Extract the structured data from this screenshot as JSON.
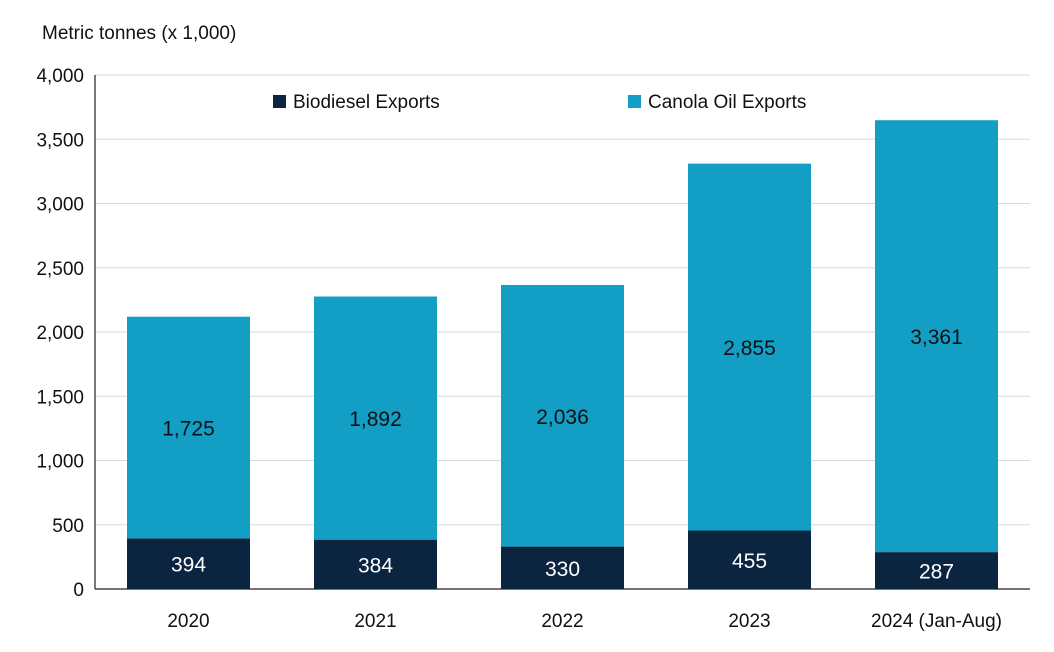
{
  "chart_data": {
    "type": "bar",
    "stacked": true,
    "ylabel": "Metric tonnes (x 1,000)",
    "categories": [
      "2020",
      "2021",
      "2022",
      "2023",
      "2024 (Jan-Aug)"
    ],
    "series": [
      {
        "name": "Biodiesel Exports",
        "color": "#0b2440",
        "label_color": "#ffffff",
        "values": [
          394,
          384,
          330,
          455,
          287
        ],
        "labels": [
          "394",
          "384",
          "330",
          "455",
          "287"
        ]
      },
      {
        "name": "Canola Oil Exports",
        "color": "#129ec5",
        "label_color": "#111111",
        "values": [
          1725,
          1892,
          2036,
          2855,
          3361
        ],
        "labels": [
          "1,725",
          "1,892",
          "2,036",
          "2,855",
          "3,361"
        ]
      }
    ],
    "ylim": [
      0,
      4000
    ],
    "yticks": [
      0,
      500,
      1000,
      1500,
      2000,
      2500,
      3000,
      3500,
      4000
    ],
    "ytick_labels": [
      "0",
      "500",
      "1,000",
      "1,500",
      "2,000",
      "2,500",
      "3,000",
      "3,500",
      "4,000"
    ],
    "grid": true,
    "legend_position": "top"
  }
}
